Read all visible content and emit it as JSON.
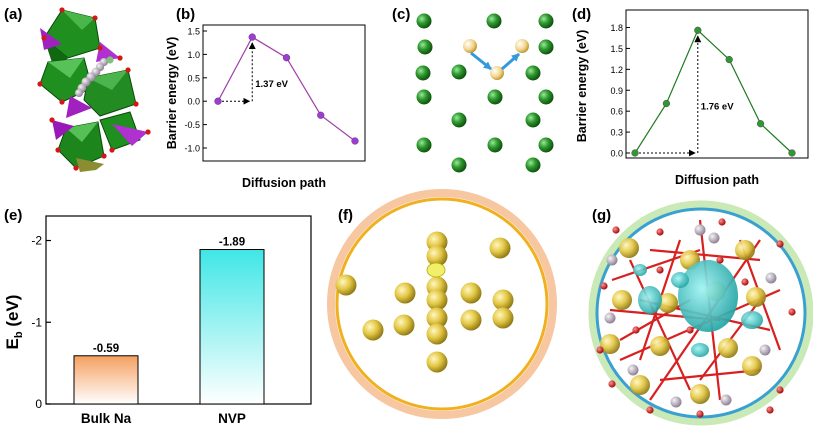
{
  "panels": {
    "a": "(a)",
    "b": "(b)",
    "c": "(c)",
    "d": "(d)",
    "e": "(e)",
    "f": "(f)",
    "g": "(g)"
  },
  "chart_data": [
    {
      "id": "b",
      "type": "line",
      "xlabel": "Diffusion path",
      "ylabel": "Barrier energy (eV)",
      "x": [
        0,
        1,
        2,
        3,
        4
      ],
      "values": [
        0.0,
        1.37,
        0.93,
        -0.3,
        -0.85
      ],
      "ylim": [
        -1.0,
        1.5
      ],
      "yticks": [
        "-1.0",
        "-0.5",
        "0.0",
        "0.5",
        "1.0",
        "1.5"
      ],
      "annotation": "1.37 eV",
      "color": "#a040a8",
      "marker_color": "#9a3fd0"
    },
    {
      "id": "d",
      "type": "line",
      "xlabel": "Diffusion path",
      "ylabel": "Barrier energy (eV)",
      "x": [
        0,
        1,
        2,
        3,
        4,
        5
      ],
      "values": [
        0.0,
        0.71,
        1.76,
        1.34,
        0.42,
        0.0
      ],
      "ylim": [
        0.0,
        1.75
      ],
      "yticks": [
        "0.0",
        "0.3",
        "0.6",
        "0.9",
        "1.2",
        "1.5",
        "1.8"
      ],
      "annotation": "1.76 eV",
      "color": "#1f7a1f",
      "marker_color": "#2c9a2c"
    },
    {
      "id": "e",
      "type": "bar",
      "categories": [
        "Bulk Na",
        "NVP"
      ],
      "values": [
        -0.59,
        -1.89
      ],
      "labels": [
        "-0.59",
        "-1.89"
      ],
      "ylabel": "E_b (eV)",
      "ylim": [
        0,
        -2.3
      ],
      "yticks": [
        "0",
        "-1",
        "-2"
      ],
      "colors": [
        "#f5a060",
        "#50e8e8"
      ]
    }
  ],
  "colors": {
    "na_green": "#2e8b2e",
    "gold": "#e0c040",
    "arrow_blue": "#3399dd",
    "ring_orange": "#f0b020",
    "ring_blue": "#3aa0d0"
  }
}
